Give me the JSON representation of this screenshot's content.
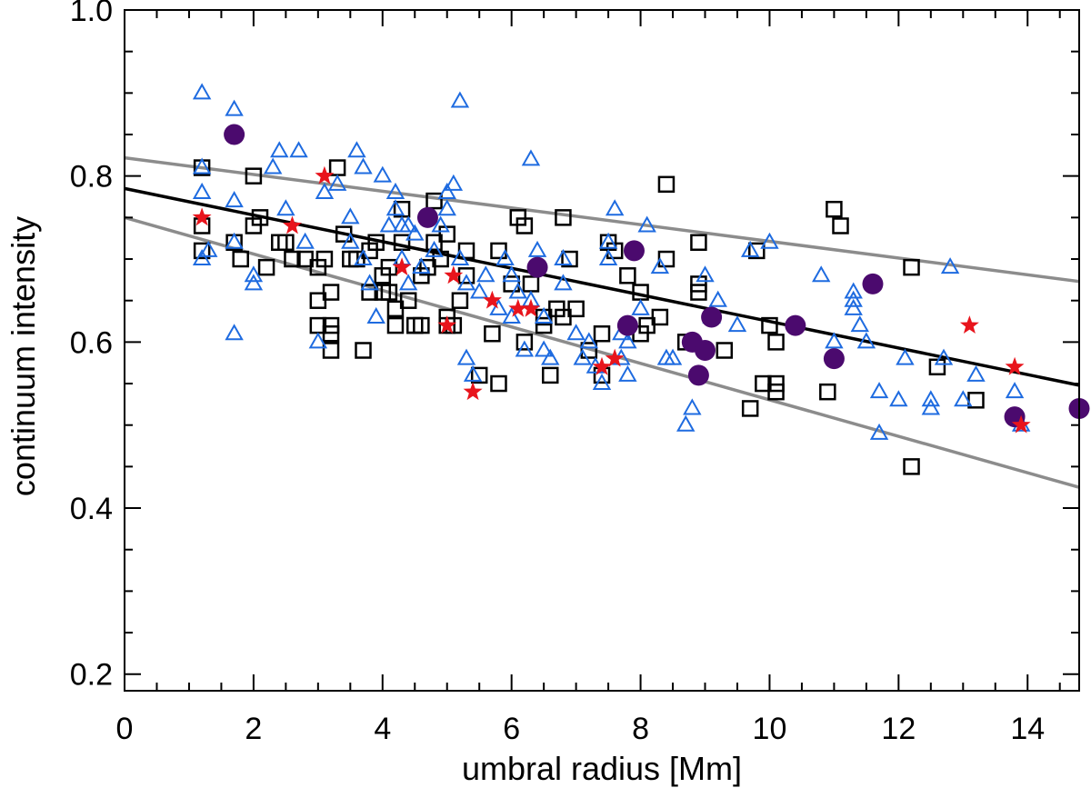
{
  "chart_data": {
    "type": "scatter",
    "title": "",
    "xlabel": "umbral radius [Mm]",
    "ylabel": "continuum intensity",
    "xlim": [
      0,
      14.8
    ],
    "ylim": [
      0.18,
      1.0
    ],
    "xticks": [
      0,
      2,
      4,
      6,
      8,
      10,
      12,
      14
    ],
    "xtick_labels": [
      "0",
      "2",
      "4",
      "6",
      "8",
      "10",
      "12",
      "14"
    ],
    "yticks": [
      0.2,
      0.4,
      0.6,
      0.8,
      1.0
    ],
    "ytick_labels": [
      "0.2",
      "0.4",
      "0.6",
      "0.8",
      "1.0"
    ],
    "series": [
      {
        "name": "squares",
        "marker": "square-open",
        "color": "#000000",
        "points": [
          [
            1.2,
            0.81
          ],
          [
            1.2,
            0.74
          ],
          [
            1.2,
            0.71
          ],
          [
            1.7,
            0.72
          ],
          [
            1.8,
            0.7
          ],
          [
            2.0,
            0.74
          ],
          [
            2.0,
            0.8
          ],
          [
            2.1,
            0.75
          ],
          [
            2.2,
            0.69
          ],
          [
            2.4,
            0.72
          ],
          [
            2.5,
            0.72
          ],
          [
            2.6,
            0.7
          ],
          [
            2.8,
            0.7
          ],
          [
            3.0,
            0.69
          ],
          [
            3.0,
            0.62
          ],
          [
            3.0,
            0.65
          ],
          [
            3.1,
            0.7
          ],
          [
            3.2,
            0.59
          ],
          [
            3.2,
            0.61
          ],
          [
            3.2,
            0.62
          ],
          [
            3.2,
            0.66
          ],
          [
            3.3,
            0.81
          ],
          [
            3.4,
            0.73
          ],
          [
            3.5,
            0.7
          ],
          [
            3.6,
            0.7
          ],
          [
            3.7,
            0.59
          ],
          [
            3.8,
            0.66
          ],
          [
            3.8,
            0.71
          ],
          [
            3.9,
            0.72
          ],
          [
            4.0,
            0.68
          ],
          [
            4.0,
            0.66
          ],
          [
            4.1,
            0.69
          ],
          [
            4.1,
            0.66
          ],
          [
            4.2,
            0.64
          ],
          [
            4.2,
            0.62
          ],
          [
            4.3,
            0.76
          ],
          [
            4.3,
            0.72
          ],
          [
            4.4,
            0.65
          ],
          [
            4.5,
            0.62
          ],
          [
            4.5,
            0.62
          ],
          [
            4.6,
            0.62
          ],
          [
            4.6,
            0.68
          ],
          [
            4.7,
            0.69
          ],
          [
            4.8,
            0.77
          ],
          [
            4.8,
            0.72
          ],
          [
            4.9,
            0.7
          ],
          [
            5.0,
            0.63
          ],
          [
            5.0,
            0.62
          ],
          [
            5.0,
            0.73
          ],
          [
            5.1,
            0.62
          ],
          [
            5.2,
            0.65
          ],
          [
            5.3,
            0.71
          ],
          [
            5.3,
            0.68
          ],
          [
            5.5,
            0.56
          ],
          [
            5.7,
            0.61
          ],
          [
            5.8,
            0.55
          ],
          [
            5.8,
            0.71
          ],
          [
            6.0,
            0.67
          ],
          [
            6.1,
            0.75
          ],
          [
            6.2,
            0.6
          ],
          [
            6.2,
            0.74
          ],
          [
            6.3,
            0.67
          ],
          [
            6.5,
            0.62
          ],
          [
            6.5,
            0.63
          ],
          [
            6.6,
            0.56
          ],
          [
            6.7,
            0.64
          ],
          [
            6.8,
            0.63
          ],
          [
            6.8,
            0.75
          ],
          [
            6.9,
            0.7
          ],
          [
            7.0,
            0.64
          ],
          [
            7.2,
            0.59
          ],
          [
            7.4,
            0.61
          ],
          [
            7.4,
            0.56
          ],
          [
            7.5,
            0.72
          ],
          [
            7.6,
            0.71
          ],
          [
            7.8,
            0.68
          ],
          [
            8.0,
            0.66
          ],
          [
            8.0,
            0.61
          ],
          [
            8.1,
            0.62
          ],
          [
            8.3,
            0.63
          ],
          [
            8.4,
            0.79
          ],
          [
            8.4,
            0.7
          ],
          [
            8.7,
            0.6
          ],
          [
            8.9,
            0.66
          ],
          [
            8.9,
            0.72
          ],
          [
            8.9,
            0.67
          ],
          [
            9.3,
            0.59
          ],
          [
            9.7,
            0.52
          ],
          [
            9.8,
            0.71
          ],
          [
            9.9,
            0.55
          ],
          [
            10.0,
            0.62
          ],
          [
            10.1,
            0.6
          ],
          [
            10.1,
            0.55
          ],
          [
            10.1,
            0.54
          ],
          [
            10.9,
            0.54
          ],
          [
            11.0,
            0.76
          ],
          [
            11.1,
            0.74
          ],
          [
            12.2,
            0.69
          ],
          [
            12.2,
            0.45
          ],
          [
            12.6,
            0.57
          ],
          [
            13.2,
            0.53
          ]
        ]
      },
      {
        "name": "triangles",
        "marker": "triangle-open",
        "color": "#1e6be0",
        "points": [
          [
            1.2,
            0.9
          ],
          [
            1.2,
            0.81
          ],
          [
            1.2,
            0.78
          ],
          [
            1.2,
            0.7
          ],
          [
            1.3,
            0.71
          ],
          [
            1.7,
            0.88
          ],
          [
            1.7,
            0.77
          ],
          [
            1.7,
            0.61
          ],
          [
            1.7,
            0.72
          ],
          [
            2.0,
            0.68
          ],
          [
            2.0,
            0.67
          ],
          [
            2.3,
            0.81
          ],
          [
            2.4,
            0.83
          ],
          [
            2.5,
            0.76
          ],
          [
            2.7,
            0.83
          ],
          [
            2.8,
            0.72
          ],
          [
            3.0,
            0.6
          ],
          [
            3.1,
            0.78
          ],
          [
            3.3,
            0.79
          ],
          [
            3.5,
            0.75
          ],
          [
            3.5,
            0.72
          ],
          [
            3.6,
            0.83
          ],
          [
            3.7,
            0.81
          ],
          [
            3.7,
            0.7
          ],
          [
            3.8,
            0.67
          ],
          [
            3.9,
            0.63
          ],
          [
            4.0,
            0.8
          ],
          [
            4.1,
            0.74
          ],
          [
            4.2,
            0.78
          ],
          [
            4.2,
            0.76
          ],
          [
            4.3,
            0.74
          ],
          [
            4.3,
            0.7
          ],
          [
            4.4,
            0.67
          ],
          [
            4.4,
            0.74
          ],
          [
            4.5,
            0.73
          ],
          [
            4.6,
            0.69
          ],
          [
            4.8,
            0.71
          ],
          [
            4.9,
            0.74
          ],
          [
            5.0,
            0.78
          ],
          [
            5.0,
            0.76
          ],
          [
            5.1,
            0.79
          ],
          [
            5.2,
            0.89
          ],
          [
            5.2,
            0.7
          ],
          [
            5.3,
            0.67
          ],
          [
            5.3,
            0.58
          ],
          [
            5.4,
            0.56
          ],
          [
            5.5,
            0.66
          ],
          [
            5.6,
            0.68
          ],
          [
            5.8,
            0.64
          ],
          [
            5.9,
            0.7
          ],
          [
            6.0,
            0.68
          ],
          [
            6.0,
            0.63
          ],
          [
            6.1,
            0.66
          ],
          [
            6.2,
            0.59
          ],
          [
            6.3,
            0.82
          ],
          [
            6.3,
            0.65
          ],
          [
            6.4,
            0.71
          ],
          [
            6.5,
            0.63
          ],
          [
            6.5,
            0.59
          ],
          [
            6.6,
            0.58
          ],
          [
            6.8,
            0.7
          ],
          [
            6.8,
            0.67
          ],
          [
            7.0,
            0.61
          ],
          [
            7.1,
            0.58
          ],
          [
            7.2,
            0.6
          ],
          [
            7.3,
            0.57
          ],
          [
            7.4,
            0.55
          ],
          [
            7.5,
            0.72
          ],
          [
            7.5,
            0.7
          ],
          [
            7.6,
            0.76
          ],
          [
            7.7,
            0.61
          ],
          [
            7.7,
            0.58
          ],
          [
            7.8,
            0.6
          ],
          [
            7.8,
            0.56
          ],
          [
            8.0,
            0.64
          ],
          [
            8.1,
            0.74
          ],
          [
            8.3,
            0.69
          ],
          [
            8.4,
            0.58
          ],
          [
            8.5,
            0.58
          ],
          [
            8.7,
            0.5
          ],
          [
            8.8,
            0.52
          ],
          [
            9.0,
            0.68
          ],
          [
            9.1,
            0.63
          ],
          [
            9.2,
            0.65
          ],
          [
            9.5,
            0.62
          ],
          [
            9.7,
            0.71
          ],
          [
            10.0,
            0.72
          ],
          [
            10.8,
            0.68
          ],
          [
            11.0,
            0.6
          ],
          [
            11.3,
            0.66
          ],
          [
            11.3,
            0.65
          ],
          [
            11.3,
            0.64
          ],
          [
            11.4,
            0.62
          ],
          [
            11.5,
            0.6
          ],
          [
            11.7,
            0.54
          ],
          [
            11.7,
            0.49
          ],
          [
            12.0,
            0.53
          ],
          [
            12.1,
            0.58
          ],
          [
            12.5,
            0.53
          ],
          [
            12.5,
            0.52
          ],
          [
            12.7,
            0.58
          ],
          [
            12.8,
            0.69
          ],
          [
            13.0,
            0.53
          ],
          [
            13.2,
            0.56
          ],
          [
            13.8,
            0.54
          ],
          [
            13.9,
            0.5
          ]
        ]
      },
      {
        "name": "circles",
        "marker": "circle-filled",
        "color": "#4b0a6e",
        "points": [
          [
            1.7,
            0.85
          ],
          [
            4.7,
            0.75
          ],
          [
            6.4,
            0.69
          ],
          [
            7.8,
            0.62
          ],
          [
            7.9,
            0.71
          ],
          [
            8.8,
            0.6
          ],
          [
            8.9,
            0.56
          ],
          [
            9.0,
            0.59
          ],
          [
            9.1,
            0.63
          ],
          [
            10.4,
            0.62
          ],
          [
            11.0,
            0.58
          ],
          [
            11.6,
            0.67
          ],
          [
            13.8,
            0.51
          ],
          [
            14.8,
            0.52
          ]
        ]
      },
      {
        "name": "stars",
        "marker": "star-filled",
        "color": "#e8141c",
        "points": [
          [
            1.2,
            0.75
          ],
          [
            2.6,
            0.74
          ],
          [
            3.1,
            0.8
          ],
          [
            4.3,
            0.69
          ],
          [
            5.0,
            0.62
          ],
          [
            5.1,
            0.68
          ],
          [
            5.4,
            0.54
          ],
          [
            5.7,
            0.65
          ],
          [
            6.1,
            0.64
          ],
          [
            6.3,
            0.64
          ],
          [
            7.4,
            0.57
          ],
          [
            7.6,
            0.58
          ],
          [
            13.1,
            0.62
          ],
          [
            13.8,
            0.57
          ],
          [
            13.9,
            0.5
          ]
        ]
      }
    ],
    "fit_lines": [
      {
        "name": "fit",
        "color": "#000000",
        "x": [
          0,
          14.8
        ],
        "y": [
          0.785,
          0.548
        ]
      },
      {
        "name": "upper-bound",
        "color": "#8c8c8c",
        "x": [
          0,
          14.8
        ],
        "y": [
          0.822,
          0.673
        ]
      },
      {
        "name": "lower-bound",
        "color": "#8c8c8c",
        "x": [
          0,
          14.8
        ],
        "y": [
          0.75,
          0.425
        ]
      }
    ]
  }
}
